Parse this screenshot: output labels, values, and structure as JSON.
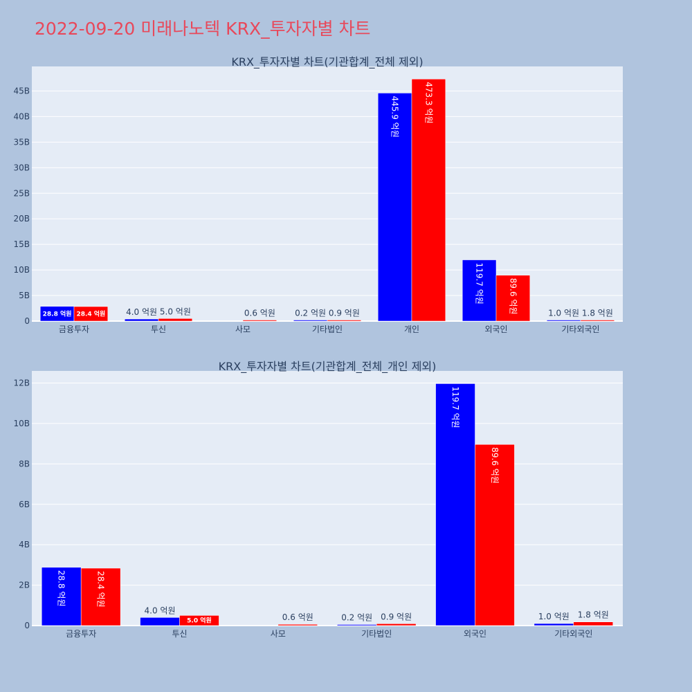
{
  "page_title": "2022-09-20 미래나노텍 KRX_투자자별 차트",
  "colors": {
    "buy": "#0000ff",
    "sell": "#ff0000",
    "plot_bg": "#e5ecf6",
    "page_bg": "#b0c4de",
    "title": "#e8485a"
  },
  "chart_data": [
    {
      "type": "bar",
      "title": "KRX_투자자별 차트(기관합계_전체 제외)",
      "categories": [
        "금융투자",
        "투신",
        "사모",
        "기타법인",
        "개인",
        "외국인",
        "기타외국인"
      ],
      "series": [
        {
          "color": "#0000ff",
          "values": [
            2.88,
            0.4,
            0,
            0.02,
            44.59,
            11.97,
            0.1
          ],
          "labels": [
            "28.8 억원",
            "4.0 억원",
            "",
            "0.2 억원",
            "445.9 억원",
            "119.7 억원",
            "1.0 억원"
          ]
        },
        {
          "color": "#ff0000",
          "values": [
            2.84,
            0.5,
            0.06,
            0.09,
            47.33,
            8.96,
            0.18
          ],
          "labels": [
            "28.4 억원",
            "5.0 억원",
            "0.6 억원",
            "0.9 억원",
            "473.3 억원",
            "89.6 억원",
            "1.8 억원"
          ]
        }
      ],
      "yticks": [
        "0",
        "5B",
        "10B",
        "15B",
        "20B",
        "25B",
        "30B",
        "35B",
        "40B",
        "45B"
      ],
      "ytick_values": [
        0,
        5,
        10,
        15,
        20,
        25,
        30,
        35,
        40,
        45
      ],
      "ylim": [
        0,
        49.8
      ]
    },
    {
      "type": "bar",
      "title": "KRX_투자자별 차트(기관합계_전체_개인 제외)",
      "categories": [
        "금융투자",
        "투신",
        "사모",
        "기타법인",
        "외국인",
        "기타외국인"
      ],
      "series": [
        {
          "color": "#0000ff",
          "values": [
            2.88,
            0.4,
            0,
            0.02,
            11.97,
            0.1
          ],
          "labels": [
            "28.8 억원",
            "4.0 억원",
            "",
            "0.2 억원",
            "119.7 억원",
            "1.0 억원"
          ]
        },
        {
          "color": "#ff0000",
          "values": [
            2.84,
            0.5,
            0.06,
            0.09,
            8.96,
            0.18
          ],
          "labels": [
            "28.4 억원",
            "5.0 억원",
            "0.6 억원",
            "0.9 억원",
            "89.6 억원",
            "1.8 억원"
          ]
        }
      ],
      "yticks": [
        "0",
        "2B",
        "4B",
        "6B",
        "8B",
        "10B",
        "12B"
      ],
      "ytick_values": [
        0,
        2,
        4,
        6,
        8,
        10,
        12
      ],
      "ylim": [
        0,
        12.6
      ]
    }
  ]
}
